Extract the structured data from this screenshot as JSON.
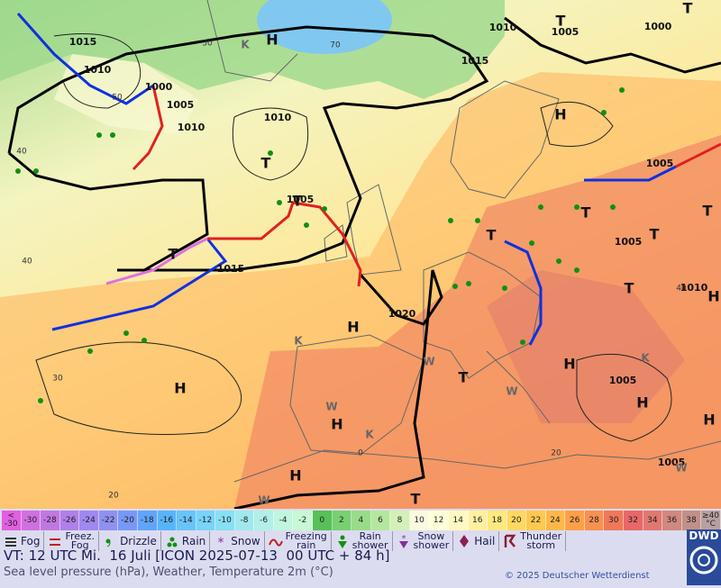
{
  "map": {
    "pressure_labels": [
      1015,
      1010,
      1000,
      1005,
      1010,
      1010,
      1005,
      1015,
      1015,
      1010,
      1005,
      1000,
      1005,
      1005,
      1010,
      1020,
      1005,
      1005
    ],
    "pressure_centers": [
      "H",
      "H",
      "T",
      "T",
      "T",
      "T",
      "T",
      "T",
      "T",
      "T",
      "T",
      "H",
      "H",
      "H",
      "H",
      "H",
      "H",
      "H",
      "T",
      "T",
      "H",
      "T"
    ],
    "temperature_labels": [
      30,
      50,
      40,
      40,
      30,
      20,
      70,
      0,
      20,
      40
    ],
    "airmass_labels": [
      "K",
      "K",
      "K",
      "K",
      "W",
      "W",
      "W",
      "W",
      "W"
    ]
  },
  "temperature_scale": [
    {
      "label": "< -30",
      "color": "#e060e0"
    },
    {
      "label": -30,
      "color": "#d070e0"
    },
    {
      "label": -28,
      "color": "#c078e0"
    },
    {
      "label": -26,
      "color": "#b080e8"
    },
    {
      "label": -24,
      "color": "#a088ee"
    },
    {
      "label": -22,
      "color": "#9090f0"
    },
    {
      "label": -20,
      "color": "#7898f8"
    },
    {
      "label": -18,
      "color": "#60a4f8"
    },
    {
      "label": -16,
      "color": "#58b4f8"
    },
    {
      "label": -14,
      "color": "#68c4f8"
    },
    {
      "label": -12,
      "color": "#78d4f8"
    },
    {
      "label": -10,
      "color": "#88e0f4"
    },
    {
      "label": -8,
      "color": "#a0e8ee"
    },
    {
      "label": -6,
      "color": "#b0f0e8"
    },
    {
      "label": -4,
      "color": "#c0f6e0"
    },
    {
      "label": -2,
      "color": "#c8f8d4"
    },
    {
      "label": 0,
      "color": "#58c058"
    },
    {
      "label": 2,
      "color": "#78d070"
    },
    {
      "label": 4,
      "color": "#98dc88"
    },
    {
      "label": 6,
      "color": "#b4e6a0"
    },
    {
      "label": 8,
      "color": "#d4f0b8"
    },
    {
      "label": 10,
      "color": "#fafae0"
    },
    {
      "label": 12,
      "color": "#ffffd8"
    },
    {
      "label": 14,
      "color": "#fff8c0"
    },
    {
      "label": 16,
      "color": "#fff0a0"
    },
    {
      "label": 18,
      "color": "#ffe880"
    },
    {
      "label": 20,
      "color": "#ffd860"
    },
    {
      "label": 22,
      "color": "#ffc850"
    },
    {
      "label": 24,
      "color": "#ffb848"
    },
    {
      "label": 26,
      "color": "#ffa048"
    },
    {
      "label": 28,
      "color": "#f89050"
    },
    {
      "label": 30,
      "color": "#f07858"
    },
    {
      "label": 32,
      "color": "#e86868"
    },
    {
      "label": 34,
      "color": "#e07870"
    },
    {
      "label": 36,
      "color": "#d08880"
    },
    {
      "label": 38,
      "color": "#c09088"
    },
    {
      "label": "≥40 °C",
      "color": "#b8a0a0"
    }
  ],
  "weather_legend": [
    "Fog",
    "Freez. Fog",
    "Drizzle",
    "Rain",
    "Snow",
    "Freezing rain",
    "Rain shower",
    "Snow shower",
    "Hail",
    "Thunder storm"
  ],
  "footer": {
    "valid_time": "VT: 12 UTC Mi.  16 Juli [ICON 2025-07-13  00 UTC + 84 h]",
    "description": "Sea level pressure (hPa), Weather, Temperature 2m (°C)",
    "copyright": "© 2025 Deutscher Wetterdienst",
    "logo": "DWD"
  }
}
